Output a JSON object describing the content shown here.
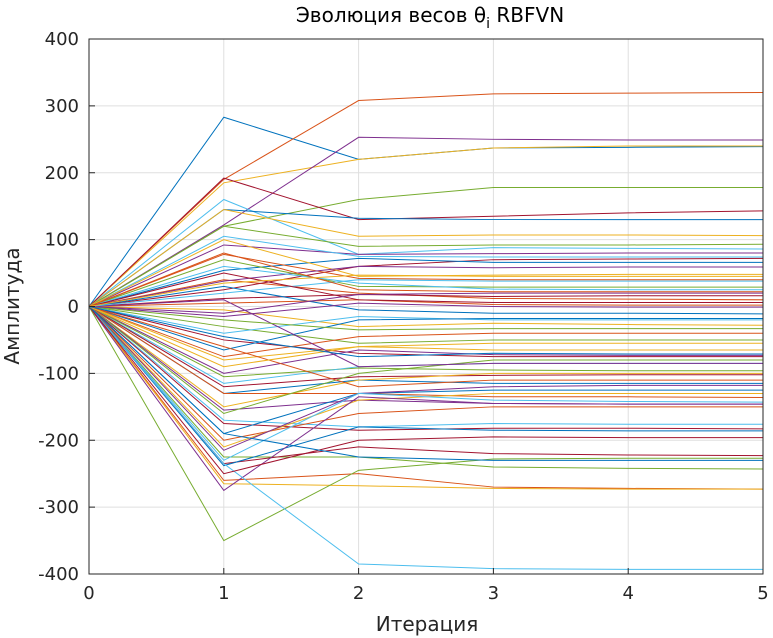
{
  "chart_data": {
    "type": "line",
    "title": "Эволюция весов θ",
    "title_subscript": "i",
    "title_suffix": " RBFVN",
    "xlabel": "Итерация",
    "ylabel": "Амплитуда",
    "xlim": [
      0,
      5
    ],
    "ylim": [
      -400,
      400
    ],
    "xticks": [
      "0",
      "1",
      "2",
      "3",
      "4",
      "5"
    ],
    "yticks": [
      "400",
      "300",
      "200",
      "100",
      "0",
      "-100",
      "-200",
      "-300",
      "-400"
    ],
    "grid": true,
    "x": [
      0,
      1,
      2,
      3,
      4,
      5
    ],
    "colors": [
      "#0072BD",
      "#D95319",
      "#EDB120",
      "#7E2F8E",
      "#77AC30",
      "#4DBEEE",
      "#A2142F"
    ],
    "series": [
      {
        "values": [
          0,
          283,
          220,
          237,
          238,
          239
        ]
      },
      {
        "values": [
          0,
          190,
          308,
          318,
          319,
          320
        ]
      },
      {
        "values": [
          0,
          185,
          220,
          237,
          240,
          240
        ]
      },
      {
        "values": [
          0,
          122,
          253,
          250,
          249,
          249
        ]
      },
      {
        "values": [
          0,
          120,
          160,
          178,
          178,
          178
        ]
      },
      {
        "values": [
          0,
          160,
          78,
          88,
          87,
          86
        ]
      },
      {
        "values": [
          0,
          192,
          130,
          135,
          140,
          143
        ]
      },
      {
        "values": [
          0,
          145,
          132,
          130,
          130,
          130
        ]
      },
      {
        "values": [
          0,
          40,
          20,
          12,
          11,
          10
        ]
      },
      {
        "values": [
          0,
          145,
          105,
          107,
          107,
          106
        ]
      },
      {
        "values": [
          0,
          92,
          78,
          79,
          80,
          80
        ]
      },
      {
        "values": [
          0,
          120,
          90,
          92,
          92,
          93
        ]
      },
      {
        "values": [
          0,
          105,
          75,
          74,
          74,
          74
        ]
      },
      {
        "values": [
          0,
          25,
          60,
          70,
          71,
          72
        ]
      },
      {
        "values": [
          0,
          54,
          72,
          66,
          66,
          66
        ]
      },
      {
        "values": [
          0,
          78,
          42,
          40,
          40,
          40
        ]
      },
      {
        "values": [
          0,
          100,
          45,
          47,
          48,
          48
        ]
      },
      {
        "values": [
          0,
          38,
          60,
          58,
          59,
          59
        ]
      },
      {
        "values": [
          0,
          70,
          30,
          29,
          29,
          29
        ]
      },
      {
        "values": [
          0,
          60,
          35,
          26,
          25,
          25
        ]
      },
      {
        "values": [
          0,
          12,
          18,
          15,
          16,
          16
        ]
      },
      {
        "values": [
          0,
          30,
          -5,
          -10,
          -10,
          -11
        ]
      },
      {
        "values": [
          0,
          5,
          10,
          3,
          2,
          2
        ]
      },
      {
        "values": [
          0,
          -5,
          -30,
          -25,
          -27,
          -28
        ]
      },
      {
        "values": [
          0,
          -15,
          5,
          0,
          -1,
          -1
        ]
      },
      {
        "values": [
          0,
          -30,
          -55,
          -50,
          -50,
          -50
        ]
      },
      {
        "values": [
          0,
          -40,
          -15,
          -20,
          -20,
          -20
        ]
      },
      {
        "values": [
          0,
          -50,
          -70,
          -75,
          -75,
          -75
        ]
      },
      {
        "values": [
          0,
          -65,
          -20,
          -18,
          -18,
          -18
        ]
      },
      {
        "values": [
          0,
          -75,
          -45,
          -40,
          -40,
          -40
        ]
      },
      {
        "values": [
          0,
          -80,
          -60,
          -55,
          -55,
          -55
        ]
      },
      {
        "values": [
          0,
          -100,
          -65,
          -72,
          -73,
          -73
        ]
      },
      {
        "values": [
          0,
          -105,
          -92,
          -95,
          -96,
          -96
        ]
      },
      {
        "values": [
          0,
          -115,
          -90,
          -85,
          -85,
          -85
        ]
      },
      {
        "values": [
          0,
          -120,
          -105,
          -103,
          -102,
          -102
        ]
      },
      {
        "values": [
          0,
          -130,
          -110,
          -115,
          -115,
          -115
        ]
      },
      {
        "values": [
          0,
          -130,
          -130,
          -135,
          -135,
          -136
        ]
      },
      {
        "values": [
          0,
          -150,
          -110,
          -100,
          -100,
          -100
        ]
      },
      {
        "values": [
          0,
          -155,
          -140,
          -145,
          -146,
          -146
        ]
      },
      {
        "values": [
          0,
          -160,
          -100,
          -80,
          -80,
          -80
        ]
      },
      {
        "values": [
          0,
          -170,
          -180,
          -175,
          -176,
          -176
        ]
      },
      {
        "values": [
          0,
          -175,
          -185,
          -182,
          -182,
          -183
        ]
      },
      {
        "values": [
          0,
          -190,
          -130,
          -125,
          -125,
          -125
        ]
      },
      {
        "values": [
          0,
          -200,
          -160,
          -150,
          -150,
          -150
        ]
      },
      {
        "values": [
          0,
          -210,
          -140,
          -130,
          -130,
          -130
        ]
      },
      {
        "values": [
          0,
          -215,
          -130,
          -120,
          -118,
          -118
        ]
      },
      {
        "values": [
          0,
          -225,
          -225,
          -240,
          -242,
          -243
        ]
      },
      {
        "values": [
          0,
          -230,
          -130,
          -140,
          -142,
          -143
        ]
      },
      {
        "values": [
          0,
          -235,
          -210,
          -220,
          -222,
          -223
        ]
      },
      {
        "values": [
          0,
          -238,
          -180,
          -185,
          -186,
          -186
        ]
      },
      {
        "values": [
          0,
          -260,
          -250,
          -270,
          -272,
          -273
        ]
      },
      {
        "values": [
          0,
          -265,
          -268,
          -272,
          -273,
          -273
        ]
      },
      {
        "values": [
          0,
          -275,
          -135,
          -145,
          -146,
          -146
        ]
      },
      {
        "values": [
          0,
          -350,
          -245,
          -228,
          -227,
          -227
        ]
      },
      {
        "values": [
          0,
          -235,
          -385,
          -392,
          -393,
          -393
        ]
      },
      {
        "values": [
          0,
          -250,
          -200,
          -195,
          -196,
          -196
        ]
      },
      {
        "values": [
          0,
          -190,
          -225,
          -230,
          -230,
          -230
        ]
      },
      {
        "values": [
          0,
          -60,
          -120,
          -110,
          -110,
          -110
        ]
      },
      {
        "values": [
          0,
          -90,
          -60,
          -65,
          -65,
          -65
        ]
      },
      {
        "values": [
          0,
          10,
          -90,
          -85,
          -85,
          -85
        ]
      },
      {
        "values": [
          0,
          -20,
          -35,
          -33,
          -33,
          -33
        ]
      },
      {
        "values": [
          0,
          20,
          40,
          38,
          38,
          38
        ]
      },
      {
        "values": [
          0,
          50,
          10,
          6,
          6,
          6
        ]
      },
      {
        "values": [
          0,
          -45,
          -75,
          -70,
          -71,
          -71
        ]
      },
      {
        "values": [
          0,
          80,
          25,
          22,
          22,
          22
        ]
      },
      {
        "values": [
          0,
          35,
          47,
          45,
          45,
          45
        ]
      },
      {
        "values": [
          0,
          -10,
          18,
          20,
          20,
          20
        ]
      }
    ]
  }
}
